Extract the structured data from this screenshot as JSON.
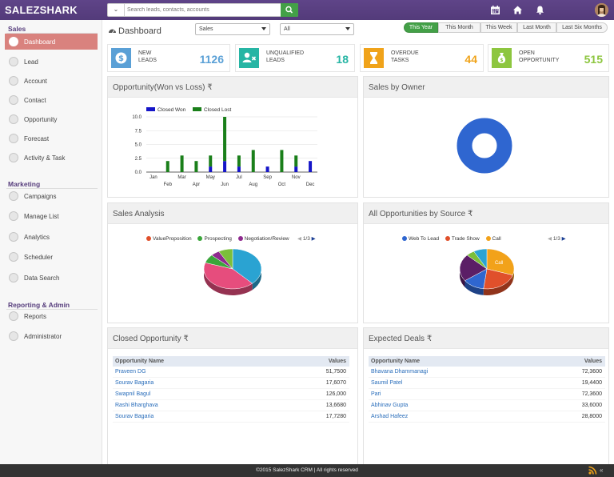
{
  "app": {
    "logo": "SALEZSHARK"
  },
  "search": {
    "placeholder": "Search leads, contacts, accounts"
  },
  "sidebar": {
    "sections": [
      {
        "title": "Sales"
      },
      {
        "title": "Marketing"
      },
      {
        "title": "Reporting & Admin"
      }
    ],
    "items": [
      {
        "label": "Dashboard"
      },
      {
        "label": "Lead"
      },
      {
        "label": "Account"
      },
      {
        "label": "Contact"
      },
      {
        "label": "Opportunity"
      },
      {
        "label": "Forecast"
      },
      {
        "label": "Activity & Task"
      },
      {
        "label": "Campaigns"
      },
      {
        "label": "Manage List"
      },
      {
        "label": "Analytics"
      },
      {
        "label": "Scheduler"
      },
      {
        "label": "Data Search"
      },
      {
        "label": "Reports"
      },
      {
        "label": "Administrator"
      }
    ]
  },
  "header": {
    "title": "Dashboard",
    "filter1": "Sales",
    "filter2": "All",
    "ranges": [
      "This Year",
      "This Month",
      "This Week",
      "Last Month",
      "Last Six Months"
    ]
  },
  "stats": [
    {
      "label1": "NEW",
      "label2": "LEADS",
      "value": "1126",
      "color": "#5aa0d6"
    },
    {
      "label1": "UNQUALIFIED",
      "label2": "LEADS",
      "value": "18",
      "color": "#26b5a4"
    },
    {
      "label1": "OVERDUE",
      "label2": "TASKS",
      "value": "44",
      "color": "#f0a31a"
    },
    {
      "label1": "OPEN",
      "label2": "OPPORTUNITY",
      "value": "515",
      "color": "#8dc63f"
    }
  ],
  "panels": {
    "opportunity": {
      "title": "Opportunity(Won vs Loss) ₹"
    },
    "owner": {
      "title": "Sales by Owner"
    },
    "analysis": {
      "title": "Sales Analysis",
      "pager": "1/3"
    },
    "source": {
      "title": "All Opportunities by Source ₹",
      "pager": "1/3"
    },
    "closed": {
      "title": "Closed Opportunity ₹",
      "col1": "Opportunity Name",
      "col2": "Values"
    },
    "expected": {
      "title": "Expected Deals ₹",
      "col1": "Opportunity Name",
      "col2": "Values"
    }
  },
  "closed_rows": [
    {
      "name": "Praveen DG",
      "value": "51,7500"
    },
    {
      "name": "Sourav Bagaria",
      "value": "17,6070"
    },
    {
      "name": "Swapnil Bagul",
      "value": "126,000"
    },
    {
      "name": "Rashi Bharghava",
      "value": "13,6680"
    },
    {
      "name": "Sourav Bagaria",
      "value": "17,7280"
    }
  ],
  "expected_rows": [
    {
      "name": "Bhavana Dhammanagi",
      "value": "72,3600"
    },
    {
      "name": "Saumil Patel",
      "value": "19,4400"
    },
    {
      "name": "Pari",
      "value": "72,3600"
    },
    {
      "name": "Abhinav Gupta",
      "value": "33,6000"
    },
    {
      "name": "Arshad Hafeez",
      "value": "28,8000"
    }
  ],
  "footer": {
    "text": "©2015 SalezShark CRM | All rights reserved"
  },
  "chart_data": [
    {
      "type": "bar",
      "title": "",
      "categories": [
        "Jan",
        "Feb",
        "Mar",
        "Apr",
        "May",
        "Jun",
        "Jul",
        "Aug",
        "Sep",
        "Oct",
        "Nov",
        "Dec"
      ],
      "series": [
        {
          "name": "Closed Won",
          "values": [
            0,
            0,
            0,
            0,
            1,
            2,
            1,
            0,
            1,
            0,
            1,
            2
          ],
          "color": "#1515c8"
        },
        {
          "name": "Closed Lost",
          "values": [
            0,
            2,
            3,
            2,
            2,
            8,
            2,
            4,
            0,
            4,
            2,
            0
          ],
          "color": "#1a7f1a"
        }
      ],
      "stacked": true,
      "ylim": [
        0,
        10
      ],
      "yticks": [
        "0.0",
        "2.5",
        "5.0",
        "7.5",
        "10.0"
      ],
      "xticks_top": [
        "Jan",
        "Mar",
        "May",
        "Jul",
        "Sep",
        "Nov"
      ],
      "xticks_bottom": [
        "Feb",
        "Apr",
        "Jun",
        "Aug",
        "Oct",
        "Dec"
      ],
      "legend": "top-left",
      "grid": true
    },
    {
      "type": "pie",
      "title": "",
      "donut": true,
      "slices": [
        {
          "name": "",
          "value": 1,
          "color": "#2f66d0"
        }
      ]
    },
    {
      "type": "pie",
      "title": "",
      "legend": [
        "ValueProposition",
        "Prospecting",
        "Negotiation/Review"
      ],
      "legend_colors": [
        "#e0502b",
        "#3aa63a",
        "#8e2a8e"
      ],
      "slices": [
        {
          "name": "",
          "value": 38,
          "color": "#2aa3d2"
        },
        {
          "name": "",
          "value": 42,
          "color": "#e64d7d"
        },
        {
          "name": "",
          "value": 7,
          "color": "#3aa63a"
        },
        {
          "name": "",
          "value": 5,
          "color": "#8e2a8e"
        },
        {
          "name": "",
          "value": 8,
          "color": "#7bbf3a"
        }
      ]
    },
    {
      "type": "pie",
      "title": "",
      "legend": [
        "Web To Lead",
        "Trade Show",
        "Call"
      ],
      "legend_colors": [
        "#2f66d0",
        "#e0502b",
        "#f2a21a"
      ],
      "slices": [
        {
          "name": "Call",
          "value": 30,
          "color": "#f2a21a"
        },
        {
          "name": "",
          "value": 22,
          "color": "#e0502b"
        },
        {
          "name": "",
          "value": 13,
          "color": "#2f66d0"
        },
        {
          "name": "",
          "value": 22,
          "color": "#5b1e66"
        },
        {
          "name": "",
          "value": 5,
          "color": "#7bbf3a"
        },
        {
          "name": "",
          "value": 8,
          "color": "#2aa3d2"
        }
      ]
    }
  ]
}
